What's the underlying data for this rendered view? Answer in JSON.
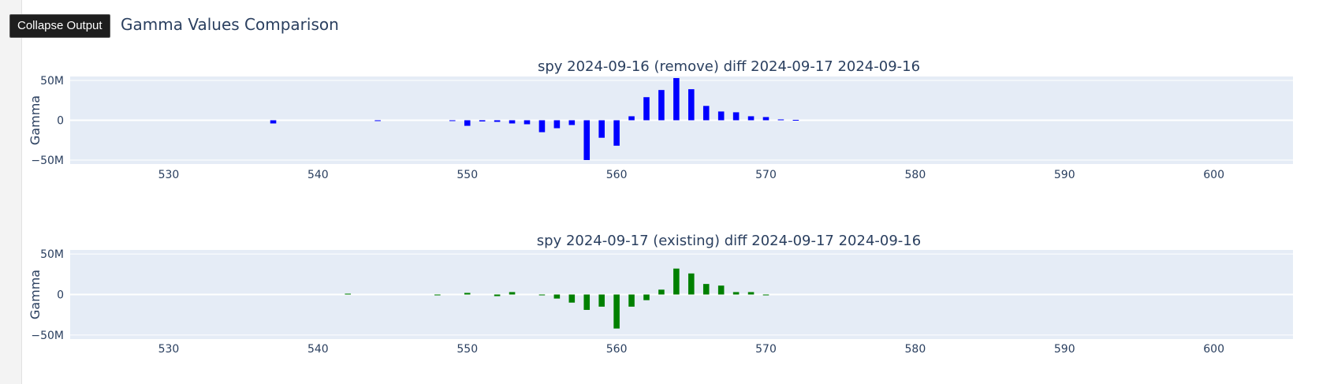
{
  "ui": {
    "collapse_label": "Collapse Output",
    "page_title": "Gamma Values Comparison"
  },
  "colors": {
    "plot_bg": "#e5ecf6",
    "series1": "#0000ff",
    "series2": "#008000",
    "axis_text": "#2a3f5f"
  },
  "chart_data": [
    {
      "type": "bar",
      "title": "spy 2024-09-16 (remove) diff 2024-09-17 2024-09-16",
      "xlabel": "",
      "ylabel": "Gamma",
      "xlim": [
        523.4,
        605.3
      ],
      "ylim": [
        -55,
        55
      ],
      "x_ticks": [
        530,
        540,
        550,
        560,
        570,
        580,
        590,
        600
      ],
      "x_tick_labels": [
        "530",
        "540",
        "550",
        "560",
        "570",
        "580",
        "590",
        "600"
      ],
      "y_ticks": [
        50,
        0,
        -50
      ],
      "y_tick_labels": [
        "50M",
        "0",
        "−50M"
      ],
      "grid": true,
      "color": "#0000ff",
      "points": [
        {
          "x": 537,
          "y": -4
        },
        {
          "x": 544,
          "y": -1
        },
        {
          "x": 549,
          "y": -1
        },
        {
          "x": 550,
          "y": -7
        },
        {
          "x": 551,
          "y": -1.5
        },
        {
          "x": 552,
          "y": -2
        },
        {
          "x": 553,
          "y": -4
        },
        {
          "x": 554,
          "y": -5
        },
        {
          "x": 555,
          "y": -15
        },
        {
          "x": 556,
          "y": -10
        },
        {
          "x": 557,
          "y": -6
        },
        {
          "x": 558,
          "y": -50
        },
        {
          "x": 559,
          "y": -22
        },
        {
          "x": 560,
          "y": -32
        },
        {
          "x": 561,
          "y": 5
        },
        {
          "x": 562,
          "y": 29
        },
        {
          "x": 563,
          "y": 38
        },
        {
          "x": 564,
          "y": 53
        },
        {
          "x": 565,
          "y": 39
        },
        {
          "x": 566,
          "y": 18
        },
        {
          "x": 567,
          "y": 11
        },
        {
          "x": 568,
          "y": 10
        },
        {
          "x": 569,
          "y": 5
        },
        {
          "x": 570,
          "y": 4
        },
        {
          "x": 571,
          "y": 1
        },
        {
          "x": 572,
          "y": 0.5
        }
      ]
    },
    {
      "type": "bar",
      "title": "spy 2024-09-17 (existing) diff 2024-09-17 2024-09-16",
      "xlabel": "",
      "ylabel": "Gamma",
      "xlim": [
        523.4,
        605.3
      ],
      "ylim": [
        -55,
        55
      ],
      "x_ticks": [
        530,
        540,
        550,
        560,
        570,
        580,
        590,
        600
      ],
      "x_tick_labels": [
        "530",
        "540",
        "550",
        "560",
        "570",
        "580",
        "590",
        "600"
      ],
      "y_ticks": [
        50,
        0,
        -50
      ],
      "y_tick_labels": [
        "50M",
        "0",
        "−50M"
      ],
      "grid": true,
      "color": "#008000",
      "points": [
        {
          "x": 542,
          "y": 1
        },
        {
          "x": 548,
          "y": -1
        },
        {
          "x": 550,
          "y": 2
        },
        {
          "x": 552,
          "y": -2
        },
        {
          "x": 553,
          "y": 3
        },
        {
          "x": 555,
          "y": -1
        },
        {
          "x": 556,
          "y": -5
        },
        {
          "x": 557,
          "y": -10
        },
        {
          "x": 558,
          "y": -19
        },
        {
          "x": 559,
          "y": -15
        },
        {
          "x": 560,
          "y": -42
        },
        {
          "x": 561,
          "y": -15
        },
        {
          "x": 562,
          "y": -7
        },
        {
          "x": 563,
          "y": 6
        },
        {
          "x": 564,
          "y": 32
        },
        {
          "x": 565,
          "y": 26
        },
        {
          "x": 566,
          "y": 13
        },
        {
          "x": 567,
          "y": 11
        },
        {
          "x": 568,
          "y": 3
        },
        {
          "x": 569,
          "y": 3
        },
        {
          "x": 570,
          "y": -1
        }
      ]
    }
  ]
}
